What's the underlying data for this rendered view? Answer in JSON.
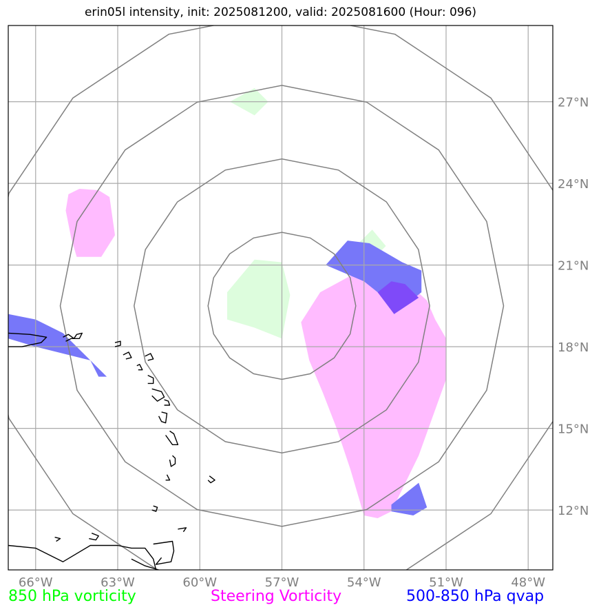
{
  "title": "erin05l intensity, init: 2025081200, valid: 2025081600 (Hour: 096)",
  "map": {
    "lon_range": [
      -67.0,
      -47.1
    ],
    "lat_range": [
      9.8,
      29.8
    ],
    "lon_ticks": [
      -66,
      -63,
      -60,
      -57,
      -54,
      -51,
      -48
    ],
    "lon_labels": [
      "66°W",
      "63°W",
      "60°W",
      "57°W",
      "54°W",
      "51°W",
      "48°W"
    ],
    "lat_ticks": [
      12,
      15,
      18,
      21,
      24,
      27
    ],
    "lat_labels": [
      "12°N",
      "15°N",
      "18°N",
      "21°N",
      "24°N",
      "27°N"
    ],
    "range_rings_center": {
      "lon": -57.0,
      "lat": 19.5
    },
    "range_rings_deg": [
      2.7,
      5.4,
      8.1,
      10.8
    ],
    "grid": true,
    "colors": {
      "frame": "#000000",
      "grid": "#a9a9a9",
      "rings": "#808080",
      "coast": "#000000",
      "vort850": "#ddfddd",
      "steering": "#ffbbff",
      "qvap": "#7777f9",
      "overlap": "#7f4af9"
    }
  },
  "legend": {
    "vort850": "850 hPa vorticity",
    "steering": "Steering Vorticity",
    "qvap": "500-850 hPa qvap"
  },
  "fields": {
    "vort850": [
      [
        [
          -58.9,
          27.0
        ],
        [
          -58.0,
          27.5
        ],
        [
          -57.5,
          27.0
        ],
        [
          -58.0,
          26.5
        ]
      ],
      [
        [
          -58.0,
          21.2
        ],
        [
          -57.0,
          21.1
        ],
        [
          -56.7,
          19.9
        ],
        [
          -57.0,
          18.3
        ],
        [
          -58.0,
          18.7
        ],
        [
          -59.0,
          19.0
        ],
        [
          -59.0,
          20.0
        ]
      ],
      [
        [
          -54.3,
          21.7
        ],
        [
          -53.7,
          22.3
        ],
        [
          -53.2,
          21.7
        ],
        [
          -53.7,
          21.2
        ]
      ]
    ],
    "steering": [
      [
        [
          -64.8,
          23.6
        ],
        [
          -64.4,
          23.8
        ],
        [
          -63.7,
          23.75
        ],
        [
          -63.3,
          23.5
        ],
        [
          -63.1,
          22.1
        ],
        [
          -63.6,
          21.3
        ],
        [
          -64.5,
          21.3
        ],
        [
          -64.7,
          22.0
        ],
        [
          -64.9,
          23.0
        ]
      ],
      [
        [
          -54.5,
          20.6
        ],
        [
          -53.8,
          20.8
        ],
        [
          -52.7,
          20.6
        ],
        [
          -51.7,
          19.7
        ],
        [
          -51.4,
          19.0
        ],
        [
          -51.0,
          18.3
        ],
        [
          -51.0,
          16.8
        ],
        [
          -52.0,
          14.0
        ],
        [
          -53.0,
          11.95
        ],
        [
          -53.5,
          11.7
        ],
        [
          -54.0,
          11.8
        ],
        [
          -54.5,
          13.5
        ],
        [
          -55.0,
          15.0
        ],
        [
          -55.5,
          16.3
        ],
        [
          -56.0,
          17.5
        ],
        [
          -56.3,
          18.9
        ],
        [
          -55.6,
          20.0
        ]
      ]
    ],
    "qvap": [
      [
        [
          -67.0,
          19.2
        ],
        [
          -66.0,
          19.0
        ],
        [
          -65.0,
          18.5
        ],
        [
          -64.3,
          17.8
        ],
        [
          -63.4,
          16.9
        ],
        [
          -63.7,
          16.9
        ],
        [
          -64.0,
          17.5
        ],
        [
          -66.0,
          18.0
        ],
        [
          -67.0,
          18.3
        ]
      ],
      [
        [
          -54.6,
          21.9
        ],
        [
          -53.8,
          21.8
        ],
        [
          -52.6,
          21.1
        ],
        [
          -51.9,
          20.8
        ],
        [
          -51.9,
          20.0
        ],
        [
          -52.9,
          19.2
        ],
        [
          -53.1,
          19.5
        ],
        [
          -53.5,
          20.0
        ],
        [
          -54.0,
          20.4
        ],
        [
          -55.4,
          21.0
        ]
      ],
      [
        [
          -53.0,
          11.95
        ],
        [
          -52.2,
          11.8
        ],
        [
          -51.7,
          12.1
        ],
        [
          -52.0,
          13.0
        ],
        [
          -53.0,
          12.2
        ]
      ]
    ],
    "overlap": [
      [
        [
          -53.5,
          20.0
        ],
        [
          -52.9,
          19.2
        ],
        [
          -52.0,
          19.8
        ],
        [
          -52.5,
          20.3
        ],
        [
          -53.0,
          20.4
        ]
      ]
    ]
  },
  "coast": [
    [
      [
        -67.0,
        18.5
      ],
      [
        -66.2,
        18.45
      ],
      [
        -65.6,
        18.35
      ],
      [
        -65.8,
        18.15
      ],
      [
        -66.5,
        18.0
      ],
      [
        -67.0,
        18.0
      ]
    ],
    [
      [
        -65.0,
        18.35
      ],
      [
        -64.8,
        18.45
      ],
      [
        -64.6,
        18.3
      ],
      [
        -64.5,
        18.45
      ],
      [
        -64.3,
        18.5
      ],
      [
        -64.4,
        18.3
      ],
      [
        -64.7,
        18.3
      ],
      [
        -64.9,
        18.2
      ]
    ],
    [
      [
        -63.1,
        18.15
      ],
      [
        -62.9,
        18.2
      ],
      [
        -62.9,
        18.05
      ],
      [
        -63.1,
        18.0
      ]
    ],
    [
      [
        -62.8,
        17.7
      ],
      [
        -62.6,
        17.8
      ],
      [
        -62.5,
        17.6
      ],
      [
        -62.7,
        17.55
      ]
    ],
    [
      [
        -62.0,
        17.65
      ],
      [
        -61.8,
        17.75
      ],
      [
        -61.7,
        17.55
      ],
      [
        -61.9,
        17.5
      ]
    ],
    [
      [
        -62.3,
        17.3
      ],
      [
        -62.2,
        17.35
      ],
      [
        -62.1,
        17.15
      ],
      [
        -62.25,
        17.15
      ]
    ],
    [
      [
        -61.9,
        16.95
      ],
      [
        -61.7,
        16.85
      ],
      [
        -61.7,
        16.65
      ],
      [
        -61.9,
        16.65
      ]
    ],
    [
      [
        -61.75,
        16.45
      ],
      [
        -61.4,
        16.35
      ],
      [
        -61.3,
        16.15
      ],
      [
        -61.55,
        16.0
      ],
      [
        -61.75,
        16.2
      ]
    ],
    [
      [
        -61.3,
        16.05
      ],
      [
        -61.15,
        16.0
      ],
      [
        -61.1,
        15.85
      ],
      [
        -61.3,
        15.85
      ]
    ],
    [
      [
        -61.4,
        15.6
      ],
      [
        -61.2,
        15.55
      ],
      [
        -61.25,
        15.2
      ],
      [
        -61.4,
        15.25
      ],
      [
        -61.5,
        15.45
      ]
    ],
    [
      [
        -61.1,
        14.9
      ],
      [
        -60.95,
        14.8
      ],
      [
        -60.8,
        14.4
      ],
      [
        -61.0,
        14.4
      ],
      [
        -61.25,
        14.75
      ]
    ],
    [
      [
        -61.0,
        14.0
      ],
      [
        -60.9,
        13.9
      ],
      [
        -60.9,
        13.7
      ],
      [
        -61.05,
        13.6
      ],
      [
        -61.1,
        13.85
      ]
    ],
    [
      [
        -61.2,
        13.3
      ],
      [
        -61.1,
        13.1
      ],
      [
        -61.25,
        13.1
      ]
    ],
    [
      [
        -59.65,
        13.25
      ],
      [
        -59.45,
        13.1
      ],
      [
        -59.6,
        13.0
      ],
      [
        -59.7,
        13.1
      ]
    ],
    [
      [
        -61.7,
        12.15
      ],
      [
        -61.55,
        12.1
      ],
      [
        -61.6,
        11.95
      ],
      [
        -61.75,
        12.0
      ]
    ],
    [
      [
        -60.8,
        11.3
      ],
      [
        -60.5,
        11.35
      ],
      [
        -60.6,
        11.2
      ]
    ],
    [
      [
        -67.0,
        10.7
      ],
      [
        -66.0,
        10.6
      ],
      [
        -65.0,
        10.1
      ],
      [
        -64.0,
        10.7
      ],
      [
        -63.0,
        10.7
      ],
      [
        -62.5,
        10.6
      ],
      [
        -62.0,
        10.6
      ],
      [
        -61.7,
        10.2
      ],
      [
        -61.6,
        9.8
      ]
    ],
    [
      [
        -61.7,
        10.75
      ],
      [
        -61.0,
        10.85
      ],
      [
        -60.95,
        10.5
      ],
      [
        -61.05,
        10.1
      ],
      [
        -61.6,
        10.0
      ],
      [
        -61.4,
        10.25
      ]
    ],
    [
      [
        -63.95,
        11.15
      ],
      [
        -63.7,
        11.05
      ],
      [
        -63.8,
        10.9
      ],
      [
        -64.05,
        10.95
      ]
    ],
    [
      [
        -65.3,
        11.0
      ],
      [
        -65.1,
        10.95
      ],
      [
        -65.25,
        10.85
      ]
    ],
    [
      [
        -62.5,
        10.2
      ],
      [
        -62.0,
        9.95
      ],
      [
        -61.5,
        9.8
      ]
    ]
  ]
}
